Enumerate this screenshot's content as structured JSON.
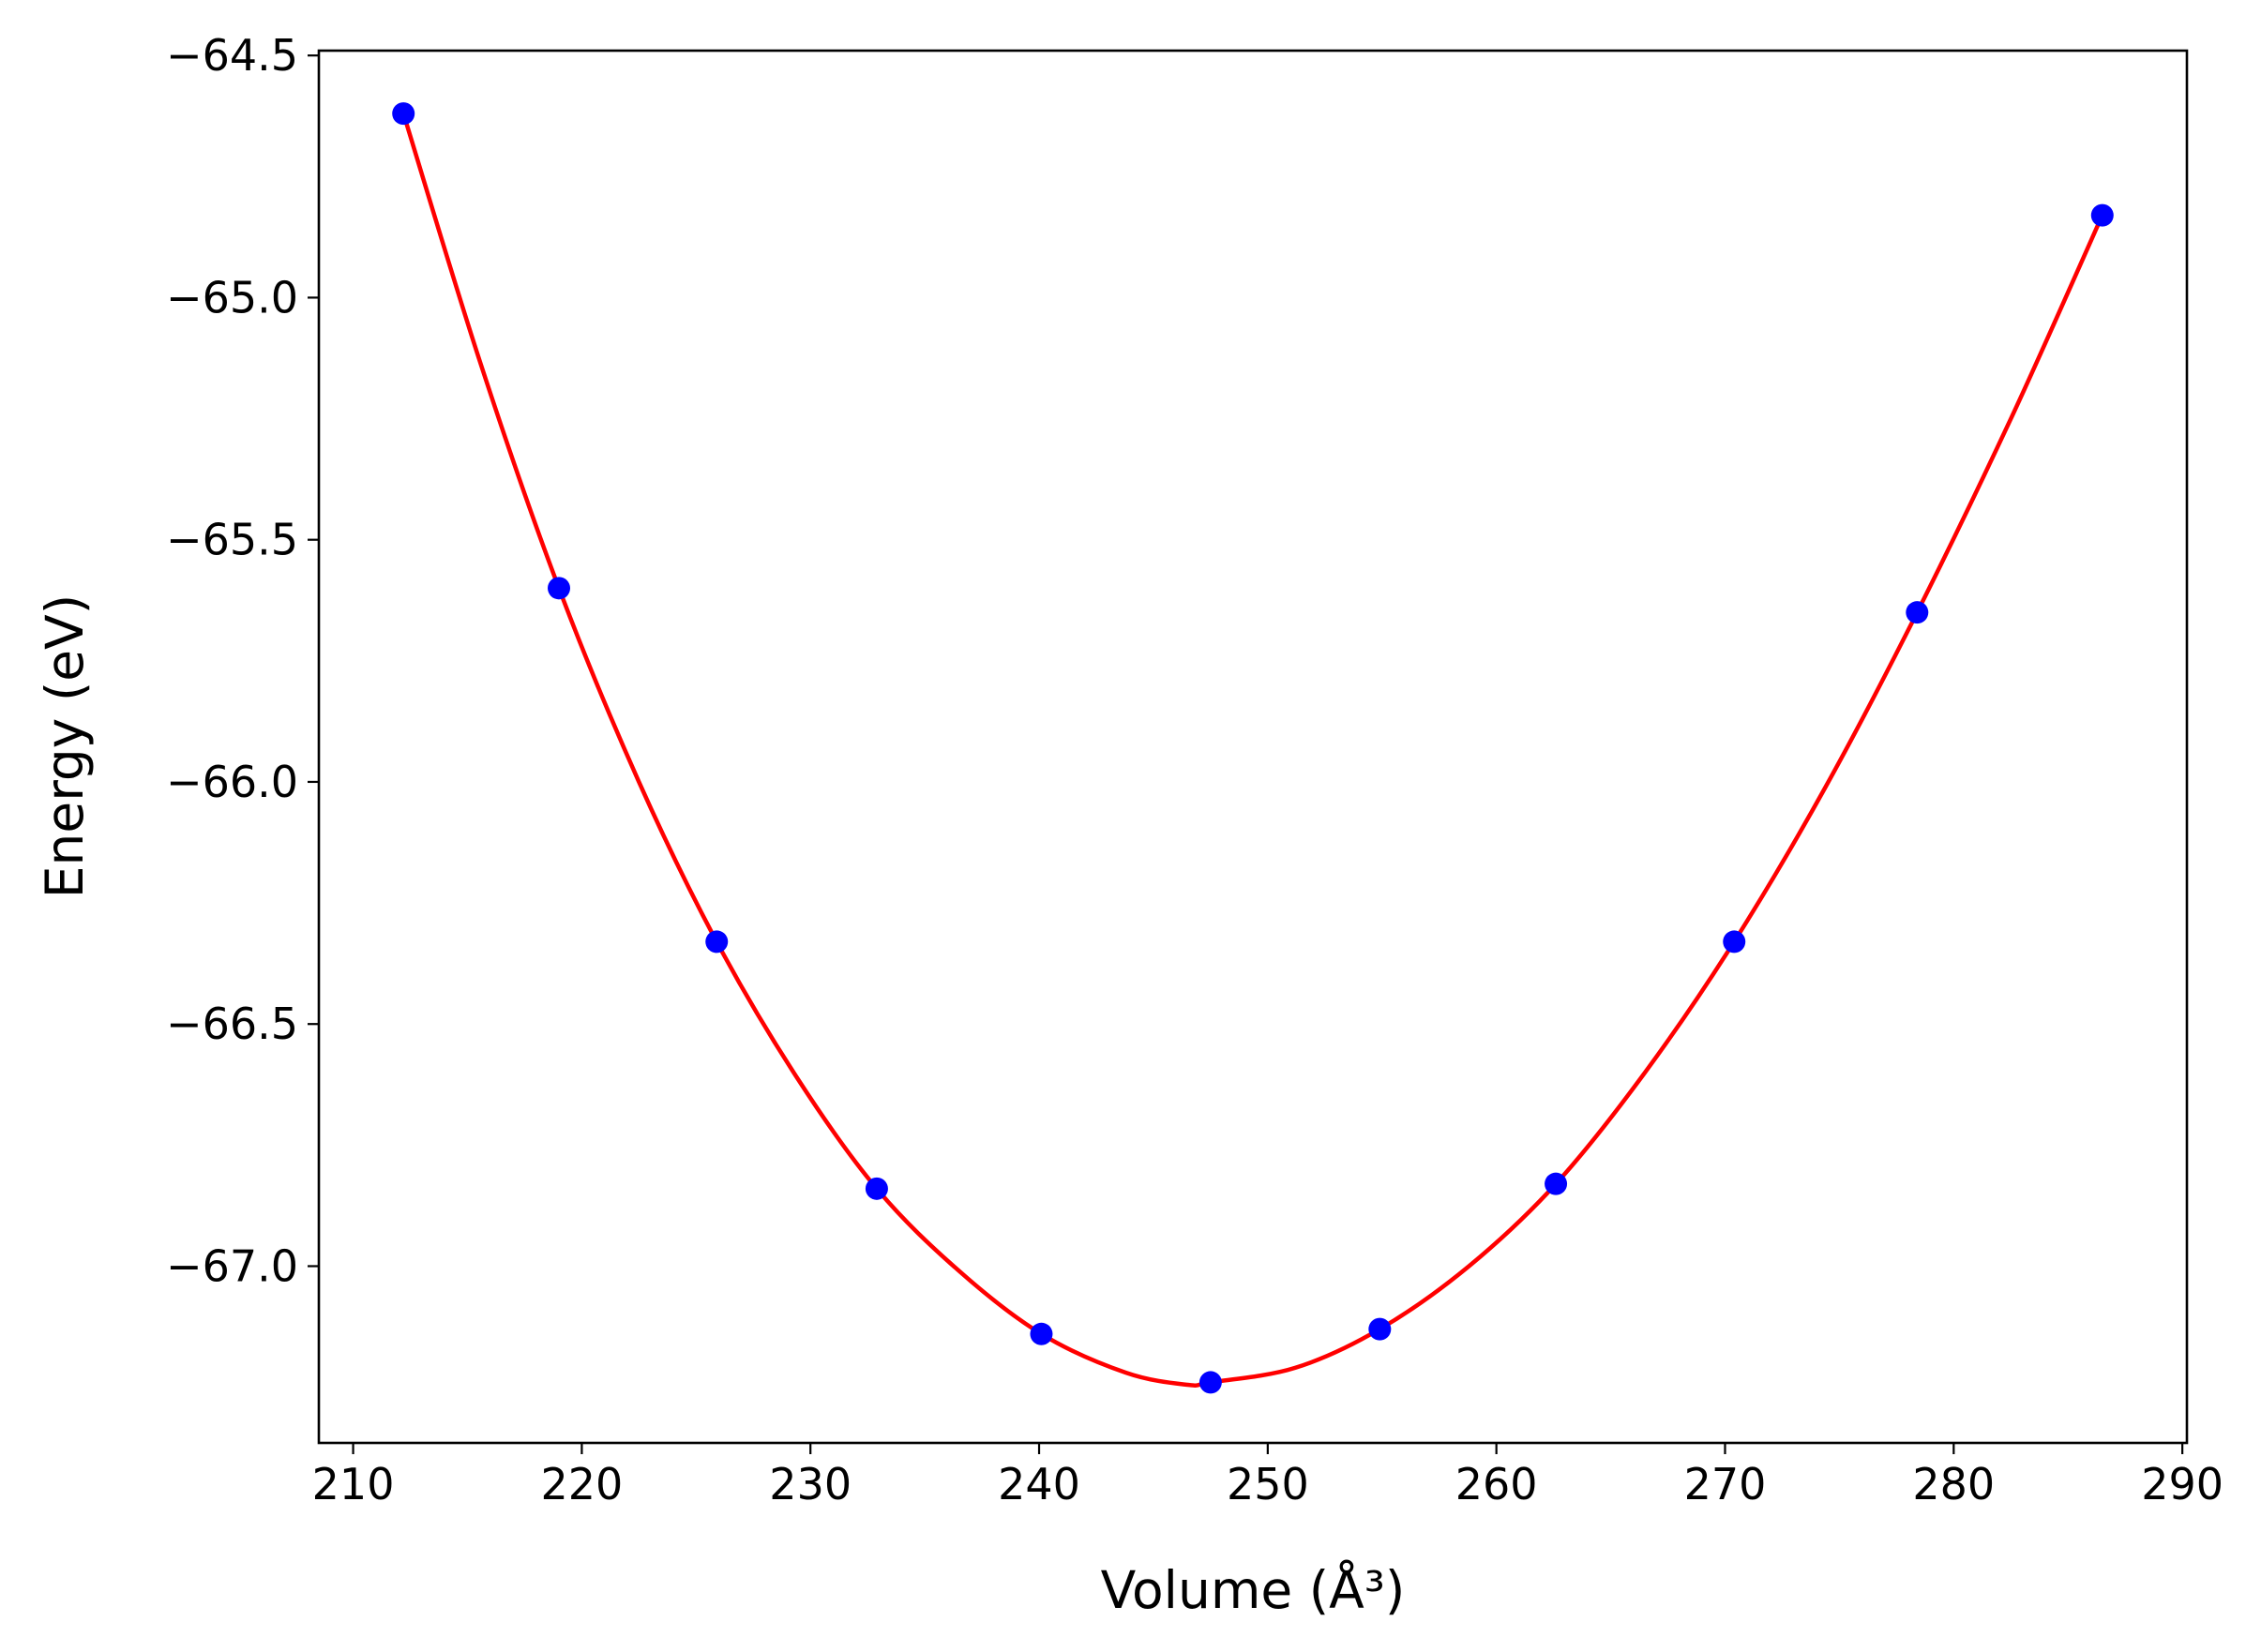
{
  "chart_data": {
    "type": "scatter",
    "title": "",
    "xlabel": "Volume (Å³)",
    "ylabel": "Energy (eV)",
    "xlim": [
      208.5,
      290.2
    ],
    "ylim": [
      -67.365,
      -64.49
    ],
    "xticks": [
      210,
      220,
      230,
      240,
      250,
      260,
      270,
      280,
      290
    ],
    "xtick_labels": [
      "210",
      "220",
      "230",
      "240",
      "250",
      "260",
      "270",
      "280",
      "290"
    ],
    "yticks": [
      -64.5,
      -65.0,
      -65.5,
      -66.0,
      -66.5,
      -67.0
    ],
    "ytick_labels": [
      "−64.5",
      "−65.0",
      "−65.5",
      "−66.0",
      "−66.5",
      "−67.0"
    ],
    "grid": false,
    "series": [
      {
        "kind": "points",
        "color": "#0000ff",
        "x": [
          212.2,
          219.0,
          225.9,
          232.9,
          240.1,
          247.5,
          254.9,
          262.6,
          270.4,
          278.4,
          286.5
        ],
        "y": [
          -64.62,
          -65.6,
          -66.33,
          -66.84,
          -67.14,
          -67.24,
          -67.13,
          -66.83,
          -66.33,
          -65.65,
          -64.83
        ]
      },
      {
        "kind": "fit-line",
        "color": "#ff0000",
        "x": [
          212.2,
          215.6,
          219.0,
          222.5,
          225.9,
          229.4,
          232.9,
          236.5,
          240.1,
          243.8,
          246.5,
          247.5,
          251.2,
          254.9,
          258.8,
          262.6,
          266.5,
          270.4,
          274.4,
          278.4,
          282.5,
          286.5
        ],
        "y": [
          -64.62,
          -65.14,
          -65.6,
          -66.0,
          -66.33,
          -66.61,
          -66.84,
          -67.01,
          -67.14,
          -67.22,
          -67.245,
          -67.24,
          -67.21,
          -67.13,
          -67.0,
          -66.83,
          -66.6,
          -66.33,
          -66.01,
          -65.65,
          -65.25,
          -64.83
        ]
      }
    ]
  }
}
